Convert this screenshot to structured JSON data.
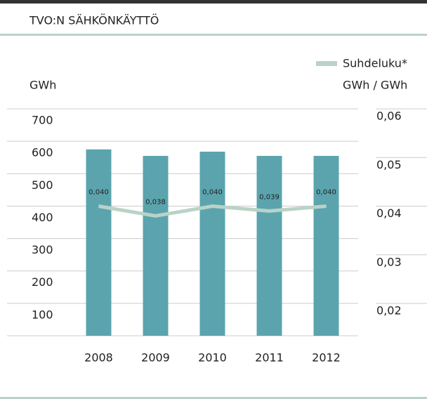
{
  "chart_data": {
    "type": "bar_line",
    "title": "TVO:N SÄHKÖNKÄYTTÖ",
    "y_label": "GWh",
    "y2_label": "GWh / GWh",
    "categories": [
      "2008",
      "2009",
      "2010",
      "2011",
      "2012"
    ],
    "series": [
      {
        "type": "bar",
        "color": "#5ba4ae",
        "values": [
          575,
          555,
          568,
          555,
          555
        ]
      },
      {
        "type": "line",
        "name": "Suhdeluku*",
        "color": "#b9d3c6",
        "axis": "y2",
        "values": [
          0.04,
          0.038,
          0.04,
          0.039,
          0.04
        ],
        "value_labels": [
          "0,040",
          "0,038",
          "0,040",
          "0,039",
          "0,040"
        ]
      }
    ],
    "ylim": [
      0,
      700
    ],
    "yticks": [
      100,
      200,
      300,
      400,
      500,
      600,
      700
    ],
    "y2lim": [
      0.02,
      0.06
    ],
    "y2ticks": [
      {
        "value": 0.02,
        "label": "0,02"
      },
      {
        "value": 0.03,
        "label": "0,03"
      },
      {
        "value": 0.04,
        "label": "0,04"
      },
      {
        "value": 0.05,
        "label": "0,05"
      },
      {
        "value": 0.06,
        "label": "0,06"
      }
    ],
    "grid": true,
    "legend": "top-right"
  }
}
